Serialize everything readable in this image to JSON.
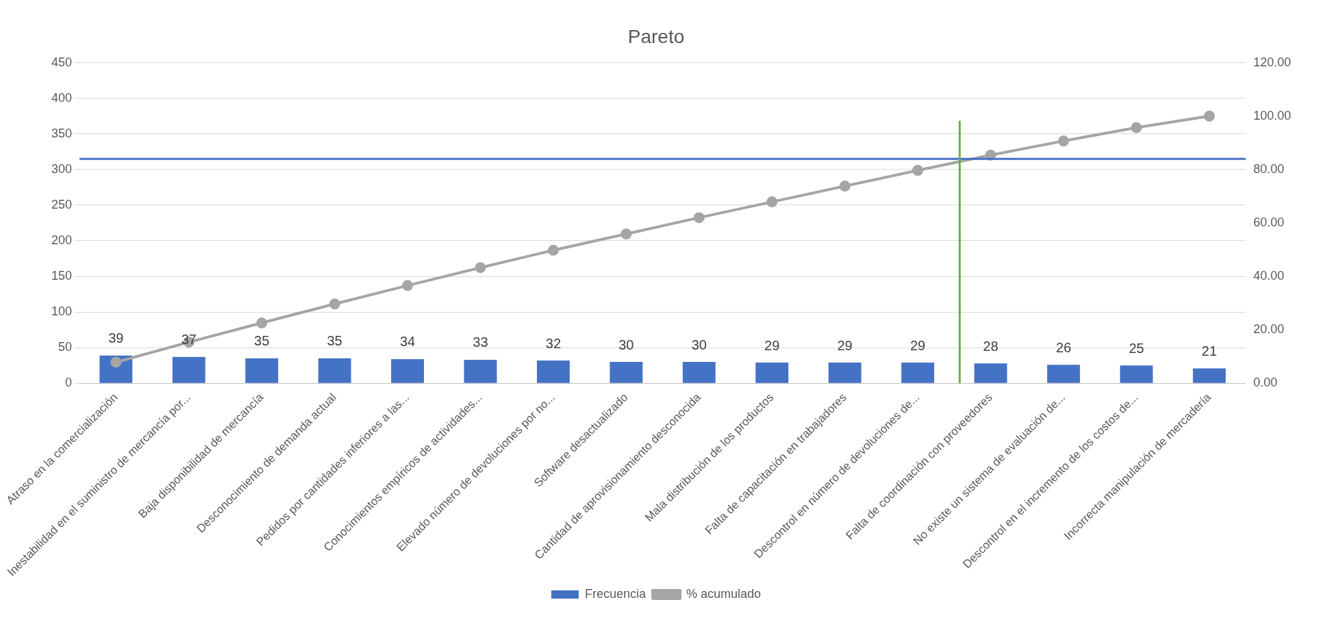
{
  "chart_data": {
    "type": "bar",
    "title": "Pareto",
    "categories": [
      "Atraso en la comercialización",
      "Inestabilidad en el suministro de mercancía por...",
      "Baja disponibilidad de mercancía",
      "Desconocimiento de demanda actual",
      "Pedidos por cantidades inferiores a las...",
      "Conocimientos empíricos de actividades...",
      "Elevado número de devoluciones por no...",
      "Software desactualizado",
      "Cantidad de aprovisionamiento desconocida",
      "Mala distribución de los productos",
      "Falta de capacitación en trabajadores",
      "Descontrol en número de devoluciones de...",
      "Falta de coordinación con proveedores",
      "No existe un sistema de evaluación de...",
      "Descontrol en el incremento de los costos de...",
      "Incorrecta manipulación de mercadería"
    ],
    "series": [
      {
        "name": "Frecuencia",
        "color": "#4472c4",
        "values": [
          39,
          37,
          35,
          35,
          34,
          33,
          32,
          30,
          30,
          29,
          29,
          29,
          28,
          26,
          25,
          21
        ]
      },
      {
        "name": "% acumulado",
        "type": "line",
        "axis": "y2",
        "color": "#a5a5a5",
        "marker": "circle",
        "values": [
          7.9,
          15.4,
          22.6,
          29.7,
          36.6,
          43.3,
          49.8,
          55.9,
          62.0,
          67.9,
          73.8,
          79.7,
          85.4,
          90.7,
          95.7,
          100.0
        ]
      }
    ],
    "ylim": [
      0,
      450
    ],
    "yticks": [
      0,
      50,
      100,
      150,
      200,
      250,
      300,
      350,
      400,
      450
    ],
    "y2lim": [
      0,
      120
    ],
    "y2ticks": [
      {
        "value": 0,
        "label": "0.00"
      },
      {
        "value": 20,
        "label": "20.00"
      },
      {
        "value": 40,
        "label": "40.00"
      },
      {
        "value": 60,
        "label": "60.00"
      },
      {
        "value": 80,
        "label": "80.00"
      },
      {
        "value": 100,
        "label": "100.00"
      },
      {
        "value": 120,
        "label": "120.00"
      }
    ],
    "ref_lines": [
      {
        "axis": "y",
        "value": 315,
        "color": "#4472c4"
      },
      {
        "axis": "x",
        "value": "Falta de coordinación con proveedores",
        "color": "#70ad47"
      }
    ],
    "grid": "y",
    "legend": "bottom",
    "value_labels": [
      "39",
      "37",
      "35",
      "35",
      "34",
      "33",
      "32",
      "30",
      "30",
      "29",
      "29",
      "29",
      "28",
      "26",
      "25",
      "21"
    ]
  }
}
